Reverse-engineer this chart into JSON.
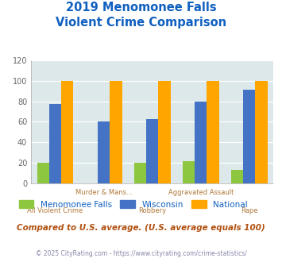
{
  "title_line1": "2019 Menomonee Falls",
  "title_line2": "Violent Crime Comparison",
  "menomonee": [
    20,
    0,
    20,
    22,
    13
  ],
  "wisconsin": [
    77,
    60,
    63,
    80,
    91
  ],
  "national": [
    100,
    100,
    100,
    100,
    100
  ],
  "colors": {
    "menomonee": "#8dc63f",
    "wisconsin": "#4472c4",
    "national": "#ffa500",
    "background": "#dce8ea",
    "title": "#1060c0",
    "axis_label_top": "#b07838",
    "axis_label_bot": "#b07838",
    "legend_text": "#1060c0",
    "subtitle_text": "#b05010",
    "footer_text": "#8888aa"
  },
  "ylim": [
    0,
    120
  ],
  "yticks": [
    0,
    20,
    40,
    60,
    80,
    100,
    120
  ],
  "top_labels": [
    "",
    "Murder & Mans...",
    "",
    "Aggravated Assault",
    ""
  ],
  "bot_labels": [
    "All Violent Crime",
    "",
    "Robbery",
    "",
    "Rape"
  ],
  "subtitle": "Compared to U.S. average. (U.S. average equals 100)",
  "footer": "© 2025 CityRating.com - https://www.cityrating.com/crime-statistics/",
  "legend_labels": [
    "Menomonee Falls",
    "Wisconsin",
    "National"
  ],
  "bar_width": 0.25
}
